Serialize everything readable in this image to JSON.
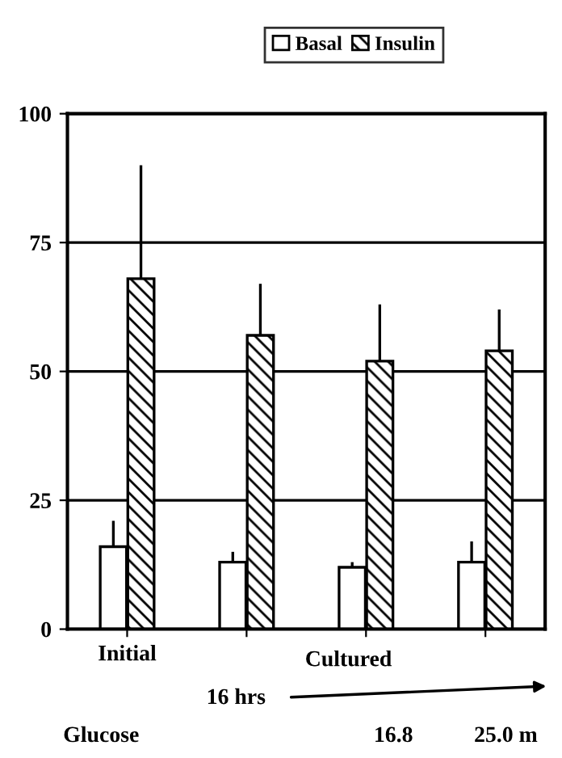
{
  "chart_data": {
    "type": "bar",
    "categories": [
      "Initial",
      null,
      null,
      null
    ],
    "series": [
      {
        "name": "Basal",
        "color": "#ffffff",
        "values": [
          16,
          13,
          12,
          13
        ],
        "errors": [
          [
            16,
            21
          ],
          [
            13,
            15
          ],
          [
            12,
            13
          ],
          [
            13,
            17
          ]
        ]
      },
      {
        "name": "Insulin",
        "color": "#000000",
        "values": [
          68,
          57,
          52,
          54
        ],
        "errors": [
          [
            68,
            90
          ],
          [
            57,
            67
          ],
          [
            52,
            63
          ],
          [
            54,
            62
          ]
        ]
      }
    ],
    "ylim": [
      0,
      100
    ],
    "yticks": [
      0,
      25,
      50,
      75,
      100
    ],
    "grid": "y",
    "legend": "top",
    "annotations": [
      "Cultured",
      "16 hrs",
      "Glucose",
      "16.8",
      "25.0 m"
    ]
  }
}
